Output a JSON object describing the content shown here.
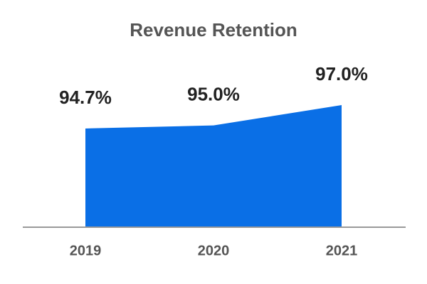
{
  "chart_data": {
    "type": "area",
    "title": "Revenue Retention",
    "categories": [
      "2019",
      "2020",
      "2021"
    ],
    "values": [
      94.7,
      95.0,
      97.0
    ],
    "value_labels": [
      "94.7%",
      "95.0%",
      "97.0%"
    ],
    "color": "#0a6fe6",
    "ylim": [
      85,
      100
    ]
  }
}
